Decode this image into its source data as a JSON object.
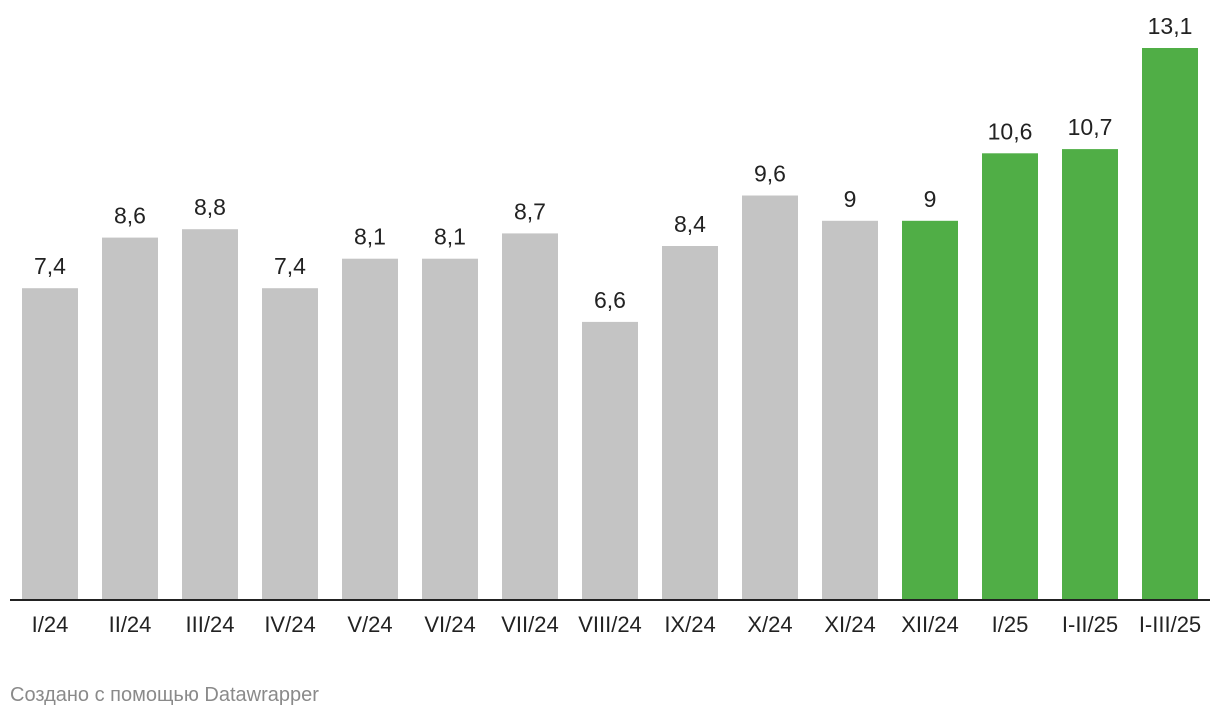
{
  "chart_data": {
    "type": "bar",
    "categories": [
      "I/24",
      "II/24",
      "III/24",
      "IV/24",
      "V/24",
      "VI/24",
      "VII/24",
      "VIII/24",
      "IX/24",
      "X/24",
      "XI/24",
      "XII/24",
      "I/25",
      "I-II/25",
      "I-III/25"
    ],
    "values": [
      7.4,
      8.6,
      8.8,
      7.4,
      8.1,
      8.1,
      8.7,
      6.6,
      8.4,
      9.6,
      9,
      9,
      10.6,
      10.7,
      13.1
    ],
    "value_labels": [
      "7,4",
      "8,6",
      "8,8",
      "7,4",
      "8,1",
      "8,1",
      "8,7",
      "6,6",
      "8,4",
      "9,6",
      "9",
      "9",
      "10,6",
      "10,7",
      "13,1"
    ],
    "highlighted": [
      false,
      false,
      false,
      false,
      false,
      false,
      false,
      false,
      false,
      false,
      false,
      true,
      true,
      true,
      true
    ],
    "ylim": [
      0,
      13.1
    ],
    "grid": false,
    "colors": {
      "default": "#c4c4c4",
      "highlight": "#50ae46",
      "baseline": "#222222",
      "label": "#222222"
    }
  },
  "credit": "Создано с помощью Datawrapper"
}
